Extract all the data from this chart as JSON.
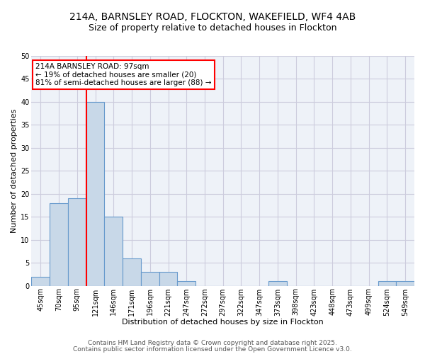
{
  "title": "214A, BARNSLEY ROAD, FLOCKTON, WAKEFIELD, WF4 4AB",
  "subtitle": "Size of property relative to detached houses in Flockton",
  "xlabel": "Distribution of detached houses by size in Flockton",
  "ylabel": "Number of detached properties",
  "categories": [
    "45sqm",
    "70sqm",
    "95sqm",
    "121sqm",
    "146sqm",
    "171sqm",
    "196sqm",
    "221sqm",
    "247sqm",
    "272sqm",
    "297sqm",
    "322sqm",
    "347sqm",
    "373sqm",
    "398sqm",
    "423sqm",
    "448sqm",
    "473sqm",
    "499sqm",
    "524sqm",
    "549sqm"
  ],
  "values": [
    2,
    18,
    19,
    40,
    15,
    6,
    3,
    3,
    1,
    0,
    0,
    0,
    0,
    1,
    0,
    0,
    0,
    0,
    0,
    1,
    1
  ],
  "bar_color": "#c8d8e8",
  "bar_edge_color": "#6699cc",
  "red_line_x": 2.5,
  "annotation_text": "214A BARNSLEY ROAD: 97sqm\n← 19% of detached houses are smaller (20)\n81% of semi-detached houses are larger (88) →",
  "annotation_box_color": "white",
  "annotation_box_edge_color": "red",
  "red_line_color": "red",
  "ylim": [
    0,
    50
  ],
  "yticks": [
    0,
    5,
    10,
    15,
    20,
    25,
    30,
    35,
    40,
    45,
    50
  ],
  "background_color": "#eef2f8",
  "grid_color": "#ccccdd",
  "footer_line1": "Contains HM Land Registry data © Crown copyright and database right 2025.",
  "footer_line2": "Contains public sector information licensed under the Open Government Licence v3.0.",
  "title_fontsize": 10,
  "subtitle_fontsize": 9,
  "axis_label_fontsize": 8,
  "tick_fontsize": 7,
  "annotation_fontsize": 7.5,
  "footer_fontsize": 6.5
}
